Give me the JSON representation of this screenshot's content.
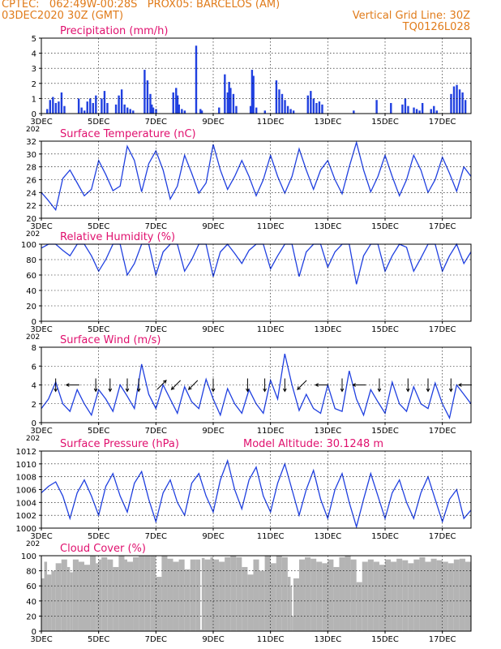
{
  "header": {
    "line1": "CPTEC:   062:49W-00:28S   PROX05: BARCELOS (AM)",
    "line2_left": "03DEC2020 30Z (GMT)",
    "line2_right": "Vertical Grid Line: 30Z",
    "line3_right": "TQ0126L028"
  },
  "colors": {
    "header": "#e07b1a",
    "title": "#e0106e",
    "series": "#2040e0",
    "cloud": "#b4b4b4",
    "frame": "#000000",
    "grid": "#000000"
  },
  "x_axis": {
    "start_day": 3,
    "end_day": 18,
    "labels": [
      {
        "day": 3,
        "label": "3DEC"
      },
      {
        "day": 5,
        "label": "5DEC"
      },
      {
        "day": 7,
        "label": "7DEC"
      },
      {
        "day": 9,
        "label": "9DEC"
      },
      {
        "day": 11,
        "label": "11DEC"
      },
      {
        "day": 13,
        "label": "13DEC"
      },
      {
        "day": 15,
        "label": "15DEC"
      },
      {
        "day": 17,
        "label": "17DEC"
      }
    ],
    "overlap_label": "202"
  },
  "chart_data": [
    {
      "id": "precip",
      "type": "bar",
      "title": "Precipitation (mm/h)",
      "ylim": [
        0,
        5
      ],
      "yticks": [
        0,
        1,
        2,
        3,
        4,
        5
      ],
      "x": [
        3.2,
        3.3,
        3.4,
        3.5,
        3.6,
        3.7,
        3.8,
        4.3,
        4.4,
        4.5,
        4.6,
        4.7,
        4.8,
        4.9,
        5.1,
        5.2,
        5.3,
        5.6,
        5.7,
        5.8,
        5.9,
        6.0,
        6.1,
        6.2,
        6.6,
        6.7,
        6.8,
        6.85,
        6.9,
        7.0,
        7.6,
        7.7,
        7.75,
        7.8,
        7.9,
        8.0,
        8.4,
        8.55,
        8.6,
        9.2,
        9.4,
        9.5,
        9.55,
        9.6,
        9.7,
        9.8,
        10.3,
        10.35,
        10.4,
        10.5,
        10.8,
        11.2,
        11.3,
        11.4,
        11.5,
        11.6,
        11.7,
        11.8,
        12.3,
        12.4,
        12.5,
        12.6,
        12.7,
        12.8,
        13.9,
        14.7,
        15.2,
        15.6,
        15.7,
        15.8,
        16.0,
        16.1,
        16.2,
        16.3,
        16.6,
        16.7,
        16.8,
        17.3,
        17.4,
        17.5,
        17.6,
        17.7,
        17.8
      ],
      "values": [
        0.3,
        0.9,
        1.1,
        0.7,
        0.8,
        1.4,
        0.5,
        1.0,
        0.4,
        0.2,
        0.8,
        1.0,
        0.7,
        1.2,
        1.0,
        1.5,
        0.7,
        0.6,
        1.2,
        1.6,
        0.6,
        0.4,
        0.3,
        0.2,
        2.9,
        2.2,
        1.3,
        0.6,
        0.4,
        0.3,
        1.4,
        1.7,
        1.2,
        0.6,
        0.3,
        0.2,
        4.5,
        0.3,
        0.2,
        0.4,
        2.6,
        1.4,
        2.1,
        1.7,
        1.3,
        0.5,
        0.5,
        2.9,
        2.5,
        0.4,
        0.2,
        2.2,
        1.6,
        1.3,
        0.9,
        0.5,
        0.3,
        0.2,
        1.2,
        1.5,
        1.0,
        0.7,
        0.8,
        0.6,
        0.2,
        0.9,
        0.7,
        0.6,
        1.0,
        0.5,
        0.4,
        0.3,
        0.2,
        0.7,
        0.3,
        0.5,
        0.2,
        1.3,
        1.8,
        1.9,
        1.6,
        1.4,
        0.9
      ],
      "xlabel": "",
      "ylabel": ""
    },
    {
      "id": "temp",
      "type": "line",
      "title": "Surface Temperature (nC)",
      "ylim": [
        20,
        32
      ],
      "yticks": [
        20,
        22,
        24,
        26,
        28,
        30,
        32
      ],
      "x": [
        3.0,
        3.2,
        3.5,
        3.75,
        4.0,
        4.25,
        4.5,
        4.75,
        5.0,
        5.25,
        5.5,
        5.75,
        6.0,
        6.25,
        6.5,
        6.75,
        7.0,
        7.25,
        7.5,
        7.75,
        8.0,
        8.25,
        8.5,
        8.75,
        9.0,
        9.25,
        9.5,
        9.75,
        10.0,
        10.25,
        10.5,
        10.75,
        11.0,
        11.25,
        11.5,
        11.75,
        12.0,
        12.25,
        12.5,
        12.75,
        13.0,
        13.25,
        13.5,
        13.75,
        14.0,
        14.25,
        14.5,
        14.75,
        15.0,
        15.25,
        15.5,
        15.75,
        16.0,
        16.25,
        16.5,
        16.75,
        17.0,
        17.25,
        17.5,
        17.75,
        18.0
      ],
      "values": [
        24.0,
        23.0,
        21.3,
        26.2,
        27.5,
        25.5,
        23.5,
        24.5,
        29.0,
        26.8,
        24.3,
        25.0,
        31.2,
        29.0,
        24.1,
        28.5,
        30.5,
        27.5,
        23.0,
        25.0,
        29.8,
        27.0,
        23.9,
        25.5,
        31.5,
        27.5,
        24.5,
        26.5,
        29.0,
        26.5,
        23.5,
        26.0,
        29.8,
        26.5,
        23.9,
        26.5,
        30.8,
        27.5,
        24.5,
        27.5,
        29.0,
        26.0,
        23.8,
        28.0,
        31.8,
        27.5,
        24.1,
        26.5,
        29.8,
        26.5,
        23.5,
        26.0,
        29.8,
        27.5,
        24.0,
        26.0,
        29.5,
        27.0,
        24.2,
        28.0,
        26.5
      ],
      "xlabel": "",
      "ylabel": ""
    },
    {
      "id": "rh",
      "type": "line",
      "title": "Relative Humidity (%)",
      "ylim": [
        0,
        100
      ],
      "yticks": [
        0,
        20,
        40,
        60,
        80,
        100
      ],
      "x": [
        3.0,
        3.25,
        3.5,
        3.75,
        4.0,
        4.25,
        4.5,
        4.75,
        5.0,
        5.25,
        5.5,
        5.75,
        6.0,
        6.25,
        6.5,
        6.75,
        7.0,
        7.25,
        7.5,
        7.75,
        8.0,
        8.25,
        8.5,
        8.75,
        9.0,
        9.25,
        9.5,
        9.75,
        10.0,
        10.25,
        10.5,
        10.75,
        11.0,
        11.25,
        11.5,
        11.75,
        12.0,
        12.25,
        12.5,
        12.75,
        13.0,
        13.25,
        13.5,
        13.75,
        14.0,
        14.25,
        14.5,
        14.75,
        15.0,
        15.25,
        15.5,
        15.75,
        16.0,
        16.25,
        16.5,
        16.75,
        17.0,
        17.25,
        17.5,
        17.75,
        18.0
      ],
      "values": [
        95,
        100,
        100,
        92,
        85,
        100,
        100,
        85,
        65,
        80,
        100,
        100,
        60,
        75,
        100,
        100,
        60,
        90,
        100,
        100,
        65,
        80,
        100,
        100,
        58,
        90,
        100,
        88,
        75,
        92,
        100,
        100,
        68,
        85,
        100,
        100,
        58,
        90,
        100,
        100,
        70,
        90,
        100,
        100,
        48,
        85,
        100,
        100,
        65,
        85,
        100,
        96,
        65,
        82,
        100,
        100,
        65,
        85,
        100,
        75,
        90
      ],
      "xlabel": "",
      "ylabel": ""
    },
    {
      "id": "wind",
      "type": "line",
      "title": "Surface Wind (m/s)",
      "ylim": [
        0,
        8
      ],
      "yticks": [
        0,
        2,
        4,
        6,
        8
      ],
      "x": [
        3.0,
        3.25,
        3.5,
        3.75,
        4.0,
        4.25,
        4.5,
        4.75,
        5.0,
        5.25,
        5.5,
        5.75,
        6.0,
        6.25,
        6.5,
        6.75,
        7.0,
        7.25,
        7.5,
        7.75,
        8.0,
        8.25,
        8.5,
        8.75,
        9.0,
        9.25,
        9.5,
        9.75,
        10.0,
        10.25,
        10.5,
        10.75,
        11.0,
        11.25,
        11.5,
        11.75,
        12.0,
        12.25,
        12.5,
        12.75,
        13.0,
        13.25,
        13.5,
        13.75,
        14.0,
        14.25,
        14.5,
        14.75,
        15.0,
        15.25,
        15.5,
        15.75,
        16.0,
        16.25,
        16.5,
        16.75,
        17.0,
        17.25,
        17.5,
        17.75,
        18.0
      ],
      "values": [
        1.5,
        2.5,
        4.3,
        2.0,
        1.2,
        3.5,
        2.0,
        0.8,
        3.5,
        2.5,
        1.2,
        4.0,
        2.8,
        1.5,
        6.2,
        3.0,
        1.5,
        4.0,
        2.5,
        1.0,
        3.8,
        2.2,
        1.5,
        4.6,
        2.5,
        0.8,
        3.6,
        2.0,
        1.0,
        3.5,
        2.0,
        1.0,
        4.5,
        2.5,
        7.3,
        4.0,
        1.3,
        3.0,
        1.5,
        1.0,
        4.0,
        1.5,
        1.2,
        5.5,
        2.5,
        0.8,
        3.5,
        2.2,
        1.0,
        4.3,
        2.0,
        1.2,
        3.8,
        2.0,
        1.5,
        4.2,
        2.0,
        0.5,
        4.0,
        3.0,
        2.0
      ],
      "arrows": [
        {
          "day": 3.5,
          "dir": "s"
        },
        {
          "day": 4.1,
          "dir": "w"
        },
        {
          "day": 4.9,
          "dir": "s"
        },
        {
          "day": 5.4,
          "dir": "s"
        },
        {
          "day": 6.0,
          "dir": "s"
        },
        {
          "day": 6.4,
          "dir": "s"
        },
        {
          "day": 7.2,
          "dir": "ne"
        },
        {
          "day": 7.7,
          "dir": "sw"
        },
        {
          "day": 8.3,
          "dir": "sw"
        },
        {
          "day": 9.0,
          "dir": "s"
        },
        {
          "day": 10.2,
          "dir": "s"
        },
        {
          "day": 10.8,
          "dir": "s"
        },
        {
          "day": 11.5,
          "dir": "s"
        },
        {
          "day": 12.1,
          "dir": "sw"
        },
        {
          "day": 12.8,
          "dir": "w"
        },
        {
          "day": 13.5,
          "dir": "s"
        },
        {
          "day": 14.1,
          "dir": "w"
        },
        {
          "day": 14.8,
          "dir": "s"
        },
        {
          "day": 15.8,
          "dir": "s"
        },
        {
          "day": 16.5,
          "dir": "s"
        },
        {
          "day": 17.3,
          "dir": "s"
        },
        {
          "day": 17.8,
          "dir": "w"
        }
      ],
      "xlabel": "",
      "ylabel": ""
    },
    {
      "id": "pres",
      "type": "line",
      "title": "Surface Pressure (hPa)",
      "annotation": "Model Altitude: 30.1248 m",
      "ylim": [
        1000,
        1012
      ],
      "yticks": [
        1000,
        1002,
        1004,
        1006,
        1008,
        1010,
        1012
      ],
      "x": [
        3.0,
        3.25,
        3.5,
        3.75,
        4.0,
        4.25,
        4.5,
        4.75,
        5.0,
        5.25,
        5.5,
        5.75,
        6.0,
        6.25,
        6.5,
        6.75,
        7.0,
        7.25,
        7.5,
        7.75,
        8.0,
        8.25,
        8.5,
        8.75,
        9.0,
        9.25,
        9.5,
        9.75,
        10.0,
        10.25,
        10.5,
        10.75,
        11.0,
        11.25,
        11.5,
        11.75,
        12.0,
        12.25,
        12.5,
        12.75,
        13.0,
        13.25,
        13.5,
        13.75,
        14.0,
        14.25,
        14.5,
        14.75,
        15.0,
        15.25,
        15.5,
        15.75,
        16.0,
        16.25,
        16.5,
        16.75,
        17.0,
        17.25,
        17.5,
        17.75,
        18.0
      ],
      "values": [
        1005.5,
        1006.5,
        1007.2,
        1005.0,
        1001.5,
        1005.5,
        1007.5,
        1005.0,
        1002.0,
        1006.5,
        1008.5,
        1005.0,
        1002.5,
        1007.0,
        1008.8,
        1004.5,
        1001.0,
        1005.5,
        1007.5,
        1004.0,
        1002.0,
        1007.0,
        1008.5,
        1005.0,
        1002.5,
        1007.5,
        1010.5,
        1006.0,
        1003.0,
        1007.5,
        1009.5,
        1005.0,
        1002.5,
        1007.0,
        1010.0,
        1006.0,
        1002.0,
        1006.0,
        1009.0,
        1004.5,
        1001.5,
        1006.0,
        1008.5,
        1004.0,
        1000.2,
        1004.5,
        1008.5,
        1005.0,
        1001.5,
        1005.5,
        1007.5,
        1004.0,
        1001.5,
        1005.5,
        1008.0,
        1004.5,
        1001.0,
        1004.5,
        1006.0,
        1001.5,
        1002.8
      ],
      "xlabel": "",
      "ylabel": ""
    },
    {
      "id": "cloud",
      "type": "area",
      "title": "Cloud Cover (%)",
      "ylim": [
        0,
        100
      ],
      "yticks": [
        0,
        20,
        40,
        60,
        80,
        100
      ],
      "x": [
        3.0,
        3.1,
        3.2,
        3.35,
        3.5,
        3.7,
        3.9,
        4.0,
        4.1,
        4.3,
        4.5,
        4.7,
        4.9,
        5.0,
        5.1,
        5.3,
        5.5,
        5.7,
        5.9,
        6.0,
        6.2,
        6.4,
        6.6,
        6.8,
        7.0,
        7.2,
        7.4,
        7.6,
        7.8,
        8.0,
        8.2,
        8.4,
        8.55,
        8.6,
        8.7,
        8.9,
        9.0,
        9.2,
        9.4,
        9.6,
        9.8,
        10.0,
        10.2,
        10.4,
        10.6,
        10.8,
        11.0,
        11.2,
        11.4,
        11.6,
        11.7,
        11.75,
        11.8,
        12.0,
        12.2,
        12.4,
        12.6,
        12.8,
        13.0,
        13.2,
        13.4,
        13.6,
        13.8,
        14.0,
        14.2,
        14.4,
        14.6,
        14.8,
        15.0,
        15.2,
        15.4,
        15.6,
        15.8,
        16.0,
        16.2,
        16.4,
        16.6,
        16.8,
        17.0,
        17.2,
        17.4,
        17.6,
        17.8,
        18.0
      ],
      "values": [
        70,
        92,
        75,
        80,
        90,
        95,
        85,
        78,
        95,
        92,
        88,
        100,
        90,
        95,
        98,
        95,
        85,
        100,
        95,
        92,
        98,
        100,
        100,
        100,
        72,
        100,
        96,
        92,
        95,
        82,
        95,
        95,
        2,
        97,
        95,
        98,
        95,
        92,
        98,
        100,
        98,
        85,
        75,
        95,
        80,
        100,
        90,
        100,
        98,
        72,
        60,
        20,
        70,
        95,
        98,
        96,
        92,
        90,
        95,
        85,
        98,
        100,
        95,
        65,
        92,
        95,
        92,
        88,
        95,
        92,
        96,
        94,
        90,
        95,
        98,
        92,
        96,
        94,
        92,
        90,
        95,
        96,
        92,
        85
      ],
      "xlabel": "",
      "ylabel": ""
    }
  ]
}
